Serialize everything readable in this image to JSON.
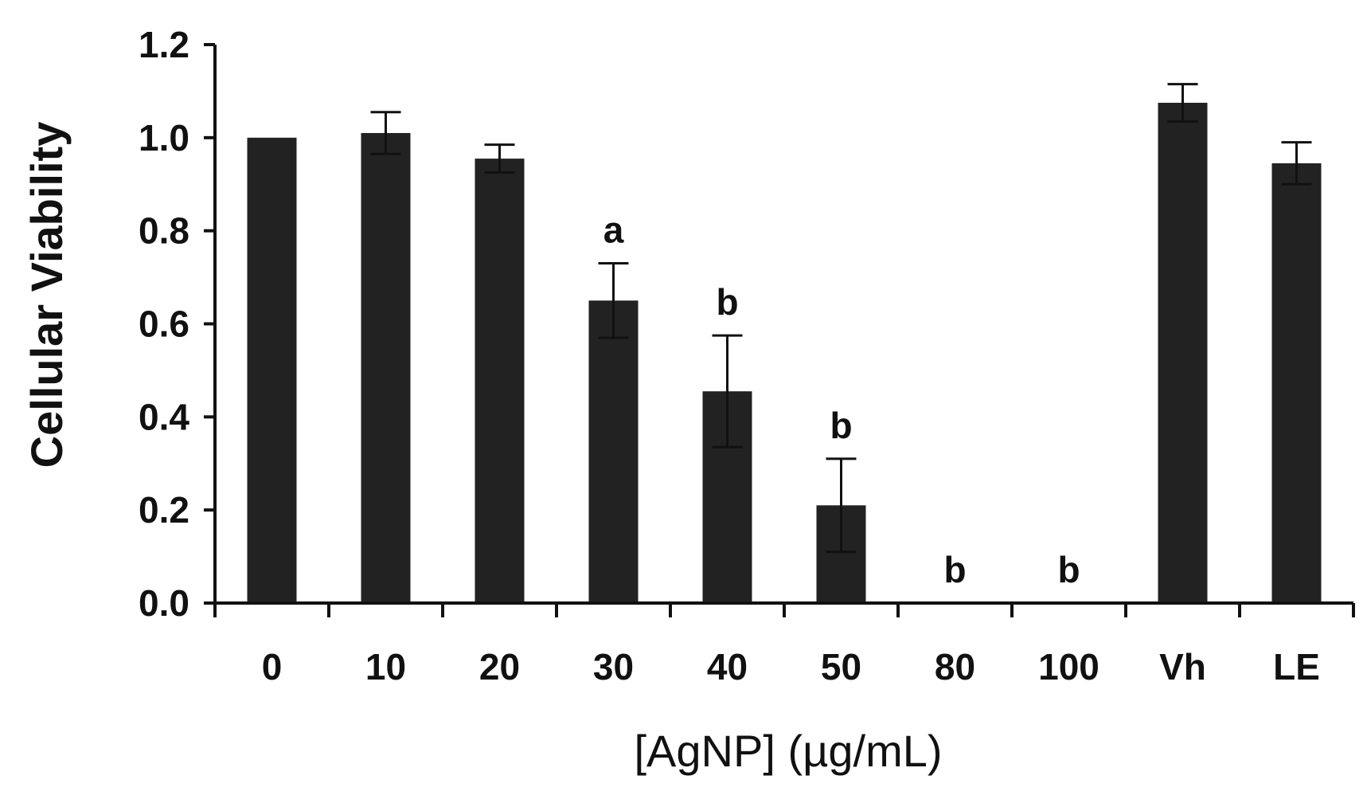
{
  "chart_data": {
    "type": "bar",
    "categories": [
      "0",
      "10",
      "20",
      "30",
      "40",
      "50",
      "80",
      "100",
      "Vh",
      "LE"
    ],
    "values": [
      1.0,
      1.01,
      0.955,
      0.65,
      0.455,
      0.21,
      0.0,
      0.0,
      1.075,
      0.945
    ],
    "errors": [
      0.0,
      0.045,
      0.03,
      0.08,
      0.12,
      0.1,
      0.0,
      0.0,
      0.04,
      0.045
    ],
    "significance": [
      "",
      "",
      "",
      "a",
      "b",
      "b",
      "b",
      "b",
      "",
      ""
    ],
    "xlabel": "[AgNP] (µg/mL)",
    "ylabel": "Cellular Viability",
    "ylim": [
      0.0,
      1.2
    ],
    "yticks": [
      "0.0",
      "0.2",
      "0.4",
      "0.6",
      "0.8",
      "1.0",
      "1.2"
    ],
    "ytick_values": [
      0.0,
      0.2,
      0.4,
      0.6,
      0.8,
      1.0,
      1.2
    ],
    "grid": false,
    "bar_color": "#222222",
    "axis_color": "#111111"
  }
}
